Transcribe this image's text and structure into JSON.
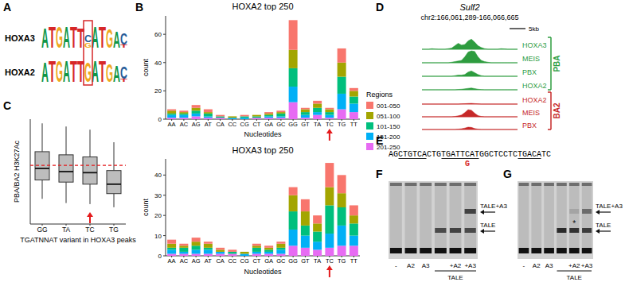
{
  "panel_labels": [
    "A",
    "B",
    "C",
    "D",
    "E",
    "F",
    "G"
  ],
  "logos": {
    "boxed_column": 6,
    "box_color": "#d62728",
    "items": [
      {
        "name": "HOXA3",
        "columns": [
          [
            [
              "A",
              1.8
            ]
          ],
          [
            [
              "T",
              1.9
            ]
          ],
          [
            [
              "G",
              1.9
            ]
          ],
          [
            [
              "A",
              1.9
            ]
          ],
          [
            [
              "T",
              1.9
            ]
          ],
          [
            [
              "T",
              1.8
            ]
          ],
          [
            [
              "C",
              0.7
            ],
            [
              "G",
              0.5
            ]
          ],
          [
            [
              "A",
              1.9
            ]
          ],
          [
            [
              "T",
              1.9
            ]
          ],
          [
            [
              "G",
              1.7
            ]
          ],
          [
            [
              "A",
              1.5
            ]
          ],
          [
            [
              "C",
              1.0
            ],
            [
              "T",
              0.3
            ]
          ]
        ]
      },
      {
        "name": "HOXA2",
        "columns": [
          [
            [
              "A",
              1.8
            ]
          ],
          [
            [
              "T",
              1.9
            ]
          ],
          [
            [
              "G",
              1.9
            ]
          ],
          [
            [
              "A",
              1.9
            ]
          ],
          [
            [
              "T",
              1.9
            ]
          ],
          [
            [
              "T",
              1.9
            ]
          ],
          [
            [
              "G",
              1.8
            ]
          ],
          [
            [
              "A",
              1.9
            ]
          ],
          [
            [
              "T",
              1.9
            ]
          ],
          [
            [
              "G",
              1.6
            ]
          ],
          [
            [
              "A",
              1.5
            ]
          ],
          [
            [
              "C",
              1.1
            ],
            [
              "T",
              0.3
            ]
          ]
        ]
      }
    ]
  },
  "chart_data": [
    {
      "type": "bar",
      "stacked": true,
      "title": "HOXA2 top 250",
      "x_label": "Nucleotides",
      "y_label": "count",
      "categories": [
        "AA",
        "AC",
        "AG",
        "AT",
        "CA",
        "CC",
        "CG",
        "CT",
        "GA",
        "GC",
        "GG",
        "GT",
        "TA",
        "TC",
        "TG",
        "TT"
      ],
      "series": [
        {
          "name": "001-050",
          "color": "#F8766D",
          "values": [
            1,
            1,
            2,
            2,
            1,
            0,
            1,
            0,
            1,
            1,
            21,
            1,
            2,
            1,
            10,
            2
          ]
        },
        {
          "name": "051-100",
          "color": "#A3A500",
          "values": [
            2,
            1,
            2,
            1,
            0,
            1,
            0,
            1,
            1,
            1,
            13,
            2,
            3,
            2,
            10,
            4
          ]
        },
        {
          "name": "101-150",
          "color": "#00BF7D",
          "values": [
            1,
            1,
            2,
            2,
            1,
            0,
            1,
            1,
            1,
            2,
            13,
            2,
            3,
            2,
            12,
            5
          ]
        },
        {
          "name": "151-200",
          "color": "#00B0F6",
          "values": [
            2,
            2,
            2,
            1,
            0,
            1,
            1,
            0,
            1,
            1,
            11,
            2,
            2,
            2,
            11,
            6
          ]
        },
        {
          "name": "201-250",
          "color": "#E76BF3",
          "values": [
            1,
            1,
            2,
            1,
            1,
            0,
            0,
            1,
            1,
            1,
            12,
            1,
            3,
            1,
            7,
            5
          ]
        }
      ],
      "ylim": [
        0,
        73
      ],
      "yticks": [
        0,
        20,
        40,
        60
      ],
      "grid": false,
      "legend": "right",
      "legend_title": "Regions",
      "annotations": [
        {
          "type": "arrow",
          "category": "TC",
          "color": "#e41a1c"
        }
      ]
    },
    {
      "type": "bar",
      "stacked": true,
      "title": "HOXA3 top 250",
      "x_label": "Nucleotides",
      "y_label": "count",
      "categories": [
        "AA",
        "AC",
        "AG",
        "AT",
        "CA",
        "CC",
        "CG",
        "CT",
        "GA",
        "GC",
        "GG",
        "GT",
        "TA",
        "TC",
        "TG",
        "TT"
      ],
      "series": [
        {
          "color": "#F8766D",
          "values": [
            2,
            1,
            2,
            1,
            1,
            1,
            0,
            1,
            1,
            1,
            4,
            6,
            4,
            12,
            9,
            5
          ]
        },
        {
          "color": "#A3A500",
          "values": [
            2,
            1,
            2,
            2,
            1,
            0,
            1,
            1,
            1,
            2,
            8,
            7,
            4,
            9,
            7,
            4
          ]
        },
        {
          "color": "#00BF7D",
          "values": [
            1,
            2,
            2,
            1,
            0,
            1,
            0,
            2,
            1,
            1,
            9,
            5,
            5,
            14,
            9,
            6
          ]
        },
        {
          "color": "#00B0F6",
          "values": [
            2,
            1,
            2,
            2,
            1,
            0,
            1,
            1,
            1,
            2,
            8,
            6,
            4,
            7,
            10,
            5
          ]
        },
        {
          "color": "#E76BF3",
          "values": [
            1,
            1,
            1,
            1,
            1,
            1,
            0,
            1,
            1,
            1,
            5,
            4,
            3,
            4,
            5,
            5
          ]
        }
      ],
      "ylim": [
        0,
        48
      ],
      "yticks": [
        0,
        10,
        20,
        30,
        40
      ],
      "grid": false,
      "annotations": [
        {
          "type": "arrow",
          "category": "TC",
          "color": "#e41a1c"
        }
      ]
    },
    {
      "type": "box",
      "y_label": "PBA/BA2 H3K27Ac",
      "x_label": "TGATNNAT variant in HOXA3 peaks",
      "categories": [
        "GG",
        "TA",
        "TC",
        "TG"
      ],
      "boxes": [
        {
          "min": 2.4,
          "q1": 4.2,
          "median": 5.3,
          "q3": 6.9,
          "max": 9.6
        },
        {
          "min": 2.0,
          "q1": 4.0,
          "median": 5.0,
          "q3": 6.6,
          "max": 9.3
        },
        {
          "min": 1.9,
          "q1": 3.8,
          "median": 4.9,
          "q3": 6.4,
          "max": 9.0
        },
        {
          "min": 1.6,
          "q1": 2.9,
          "median": 3.8,
          "q3": 5.1,
          "max": 7.8
        }
      ],
      "color": "#bdbdbd",
      "ylim": [
        0,
        10
      ],
      "tick_labels": "x",
      "reference_line": {
        "value": 5.6,
        "color": "#e41a1c",
        "line_style": "dashed"
      },
      "annotations": [
        {
          "type": "arrow",
          "category": "TC",
          "color": "#e41a1c"
        }
      ]
    }
  ],
  "browser": {
    "title": "Sulf2",
    "region": "chr2:166,061,289-166,066,665",
    "scale_bar": "5kb",
    "groups": [
      {
        "name": "PBA",
        "color": "#2e9c3f",
        "tracks": [
          {
            "name": "HOXA3",
            "values": [
              0,
              0,
              0,
              0.05,
              0.02,
              0,
              0,
              0,
              0.05,
              0.1,
              0.3,
              0.5,
              0.35,
              0.4,
              0.7,
              0.85,
              0.6,
              0.3,
              0.15,
              0.05,
              0,
              0,
              0,
              0,
              0.05,
              0.03,
              0,
              0,
              0,
              0
            ]
          },
          {
            "name": "MEIS",
            "values": [
              0,
              0,
              0,
              0,
              0,
              0,
              0,
              0,
              0,
              0.05,
              0.1,
              0.15,
              0.2,
              0.5,
              0.9,
              1,
              0.95,
              0.5,
              0.2,
              0.1,
              0.05,
              0,
              0,
              0,
              0,
              0,
              0,
              0,
              0,
              0
            ]
          },
          {
            "name": "PBX",
            "values": [
              0,
              0,
              0,
              0,
              0,
              0,
              0,
              0,
              0,
              0,
              0.05,
              0.1,
              0.1,
              0.15,
              0.35,
              0.45,
              0.3,
              0.15,
              0.05,
              0,
              0,
              0,
              0,
              0,
              0,
              0,
              0,
              0,
              0,
              0
            ]
          },
          {
            "name": "HOXA2",
            "values": [
              0,
              0,
              0,
              0,
              0,
              0,
              0,
              0,
              0,
              0,
              0,
              0.03,
              0.05,
              0.08,
              0.12,
              0.15,
              0.1,
              0.05,
              0.02,
              0,
              0,
              0,
              0,
              0,
              0,
              0,
              0,
              0,
              0,
              0
            ]
          }
        ]
      },
      {
        "name": "BA2",
        "color": "#c62828",
        "tracks": [
          {
            "name": "HOXA2",
            "values": [
              0,
              0,
              0,
              0,
              0,
              0,
              0,
              0,
              0,
              0,
              0,
              0,
              0.02,
              0.03,
              0.05,
              0.06,
              0.04,
              0.02,
              0,
              0,
              0,
              0,
              0,
              0,
              0,
              0,
              0,
              0,
              0,
              0
            ]
          },
          {
            "name": "MEIS",
            "values": [
              0,
              0,
              0,
              0,
              0,
              0,
              0,
              0,
              0,
              0,
              0.03,
              0.08,
              0.15,
              0.35,
              0.6,
              0.55,
              0.3,
              0.1,
              0.03,
              0,
              0,
              0,
              0,
              0,
              0,
              0,
              0,
              0,
              0,
              0
            ]
          },
          {
            "name": "PBX",
            "values": [
              0,
              0,
              0,
              0,
              0,
              0,
              0,
              0,
              0,
              0,
              0,
              0.03,
              0.06,
              0.12,
              0.2,
              0.18,
              0.08,
              0.03,
              0,
              0,
              0,
              0,
              0,
              0,
              0,
              0,
              0,
              0,
              0,
              0
            ]
          }
        ]
      }
    ]
  },
  "sequence": {
    "segments": [
      {
        "text": "AG",
        "underline": false
      },
      {
        "text": "CTGTCA",
        "underline": true
      },
      {
        "text": "CTG",
        "underline": false
      },
      {
        "text": "TGATTCAT",
        "underline": true
      },
      {
        "text": "GGCTCCTC",
        "underline": false
      },
      {
        "text": "TGACA",
        "underline": true
      },
      {
        "text": "TC",
        "underline": false
      }
    ],
    "mutation": {
      "segment": 3,
      "offset": 5,
      "text": "G",
      "color": "#d62728"
    }
  },
  "gels": [
    {
      "lanes": [
        "-",
        "A2",
        "A3",
        null,
        "+A2",
        "+A3"
      ],
      "group": {
        "label": "TALE",
        "from": 3,
        "to": 5
      },
      "bands": [
        {
          "name": "TALE+A3",
          "intensities": [
            0,
            0,
            0,
            0,
            0,
            0.75
          ]
        },
        {
          "name": "TALE",
          "intensities": [
            0,
            0,
            0,
            0.7,
            0.75,
            0.7
          ]
        }
      ]
    },
    {
      "lanes": [
        "-",
        "A2",
        "A3",
        null,
        "+A2",
        "+A3"
      ],
      "group": {
        "label": "TALE",
        "from": 3,
        "to": 5
      },
      "bands": [
        {
          "name": "TALE+A3",
          "intensities": [
            0,
            0,
            0,
            0,
            0.15,
            0.5
          ]
        },
        {
          "name": "TALE",
          "intensities": [
            0,
            0,
            0,
            0.9,
            0.85,
            0.8
          ]
        }
      ],
      "star": {
        "lane": 4,
        "band": 1,
        "text": "*"
      }
    }
  ]
}
